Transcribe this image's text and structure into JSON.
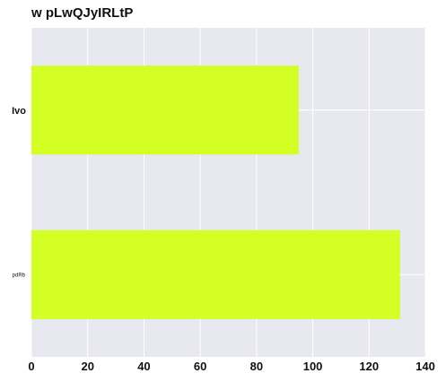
{
  "chart_data": {
    "type": "bar",
    "orientation": "horizontal",
    "title": "w pLwQJyIRLtP",
    "xlabel": "",
    "ylabel": "",
    "categories": [
      "Ivo",
      "pdRb"
    ],
    "values": [
      95,
      131
    ],
    "xlim": [
      0,
      140
    ],
    "xticks": [
      "0",
      "20",
      "40",
      "60",
      "80",
      "100",
      "120",
      "140"
    ],
    "grid": true,
    "legend": "none",
    "colors": {
      "bar": "#d4ff24",
      "plot_background": "#e8e8f0",
      "grid": "#ffffff"
    }
  }
}
